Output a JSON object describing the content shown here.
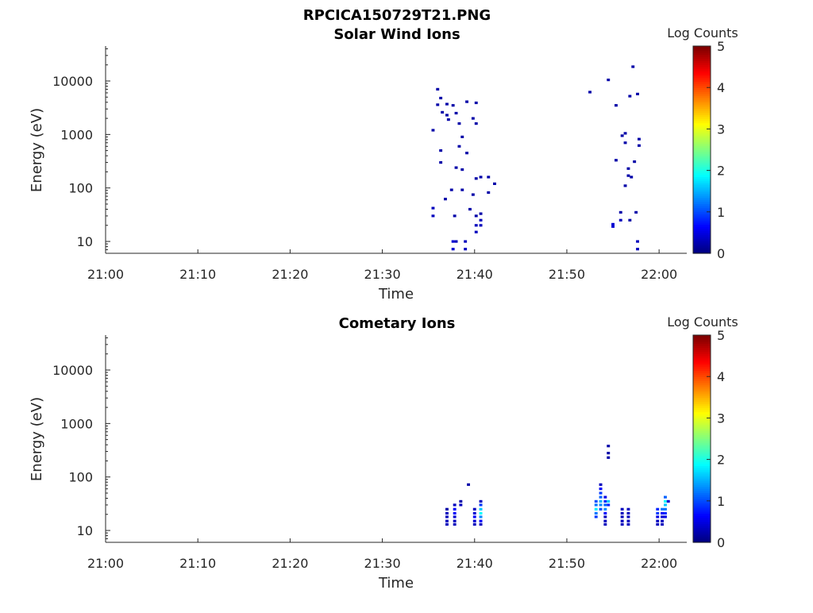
{
  "figure_title": "RPCICA150729T21.PNG",
  "colors": {
    "colormap": "jet",
    "axis": "#262626",
    "background": "#ffffff"
  },
  "chart_data": [
    {
      "type": "heatmap",
      "title": "Solar Wind Ions",
      "xlabel": "Time",
      "ylabel": "Energy (eV)",
      "yscale": "log",
      "xlim": [
        "21:00",
        "22:03"
      ],
      "ylim": [
        6,
        45000
      ],
      "x_ticks": [
        "21:00",
        "21:10",
        "21:20",
        "21:30",
        "21:40",
        "21:50",
        "22:00"
      ],
      "y_ticks": [
        "10",
        "100",
        "1000",
        "10000"
      ],
      "colorbar": {
        "label": "Log Counts",
        "ticks": [
          "0",
          "1",
          "2",
          "3",
          "4",
          "5"
        ],
        "range": [
          0,
          5
        ]
      },
      "cells": [
        {
          "t": "21:36:00",
          "e": 7000,
          "v": 0.2
        },
        {
          "t": "21:36:20",
          "e": 4800,
          "v": 0.2
        },
        {
          "t": "21:36:00",
          "e": 3600,
          "v": 0.2
        },
        {
          "t": "21:37:00",
          "e": 3700,
          "v": 0.2
        },
        {
          "t": "21:37:40",
          "e": 3500,
          "v": 0.2
        },
        {
          "t": "21:36:30",
          "e": 2600,
          "v": 0.2
        },
        {
          "t": "21:37:00",
          "e": 2300,
          "v": 0.2
        },
        {
          "t": "21:38:00",
          "e": 2500,
          "v": 0.2
        },
        {
          "t": "21:39:10",
          "e": 4100,
          "v": 0.2
        },
        {
          "t": "21:40:10",
          "e": 3900,
          "v": 0.2
        },
        {
          "t": "21:37:10",
          "e": 1900,
          "v": 0.2
        },
        {
          "t": "21:38:20",
          "e": 1600,
          "v": 0.2
        },
        {
          "t": "21:40:10",
          "e": 1600,
          "v": 0.2
        },
        {
          "t": "21:35:30",
          "e": 1200,
          "v": 0.2
        },
        {
          "t": "21:39:50",
          "e": 2000,
          "v": 0.2
        },
        {
          "t": "21:38:40",
          "e": 900,
          "v": 0.2
        },
        {
          "t": "21:38:20",
          "e": 600,
          "v": 0.2
        },
        {
          "t": "21:39:10",
          "e": 450,
          "v": 0.2
        },
        {
          "t": "21:36:20",
          "e": 500,
          "v": 0.2
        },
        {
          "t": "21:36:20",
          "e": 300,
          "v": 0.2
        },
        {
          "t": "21:38:00",
          "e": 240,
          "v": 0.2
        },
        {
          "t": "21:38:40",
          "e": 220,
          "v": 0.2
        },
        {
          "t": "21:40:40",
          "e": 160,
          "v": 0.2
        },
        {
          "t": "21:41:30",
          "e": 160,
          "v": 0.2
        },
        {
          "t": "21:40:10",
          "e": 150,
          "v": 0.2
        },
        {
          "t": "21:42:10",
          "e": 120,
          "v": 0.2
        },
        {
          "t": "21:37:30",
          "e": 92,
          "v": 0.2
        },
        {
          "t": "21:38:40",
          "e": 92,
          "v": 0.2
        },
        {
          "t": "21:41:30",
          "e": 82,
          "v": 0.2
        },
        {
          "t": "21:39:50",
          "e": 75,
          "v": 0.2
        },
        {
          "t": "21:36:50",
          "e": 62,
          "v": 0.2
        },
        {
          "t": "21:35:30",
          "e": 42,
          "v": 0.3
        },
        {
          "t": "21:35:30",
          "e": 30,
          "v": 0.3
        },
        {
          "t": "21:37:50",
          "e": 30,
          "v": 0.2
        },
        {
          "t": "21:40:10",
          "e": 30,
          "v": 0.2
        },
        {
          "t": "21:39:30",
          "e": 40,
          "v": 0.2
        },
        {
          "t": "21:40:40",
          "e": 33,
          "v": 0.2
        },
        {
          "t": "21:40:40",
          "e": 25,
          "v": 0.3
        },
        {
          "t": "21:40:40",
          "e": 20,
          "v": 0.3
        },
        {
          "t": "21:40:10",
          "e": 20,
          "v": 0.3
        },
        {
          "t": "21:40:10",
          "e": 15,
          "v": 0.3
        },
        {
          "t": "21:37:40",
          "e": 10,
          "v": 0.4
        },
        {
          "t": "21:37:40",
          "e": 7.2,
          "v": 0.4
        },
        {
          "t": "21:38:00",
          "e": 10,
          "v": 0.3
        },
        {
          "t": "21:39:00",
          "e": 10,
          "v": 0.3
        },
        {
          "t": "21:39:00",
          "e": 7.2,
          "v": 0.3
        },
        {
          "t": "21:52:30",
          "e": 6200,
          "v": 0.2
        },
        {
          "t": "21:54:30",
          "e": 10500,
          "v": 0.2
        },
        {
          "t": "21:57:10",
          "e": 18500,
          "v": 0.2
        },
        {
          "t": "21:56:50",
          "e": 5200,
          "v": 0.2
        },
        {
          "t": "21:57:40",
          "e": 5700,
          "v": 0.2
        },
        {
          "t": "21:55:20",
          "e": 3500,
          "v": 0.2
        },
        {
          "t": "21:56:20",
          "e": 1050,
          "v": 0.2
        },
        {
          "t": "21:56:00",
          "e": 950,
          "v": 0.2
        },
        {
          "t": "21:57:50",
          "e": 820,
          "v": 0.2
        },
        {
          "t": "21:56:20",
          "e": 700,
          "v": 0.2
        },
        {
          "t": "21:57:50",
          "e": 620,
          "v": 0.2
        },
        {
          "t": "21:55:20",
          "e": 330,
          "v": 0.2
        },
        {
          "t": "21:57:20",
          "e": 310,
          "v": 0.2
        },
        {
          "t": "21:56:40",
          "e": 230,
          "v": 0.2
        },
        {
          "t": "21:56:40",
          "e": 170,
          "v": 0.2
        },
        {
          "t": "21:57:00",
          "e": 160,
          "v": 0.2
        },
        {
          "t": "21:56:20",
          "e": 110,
          "v": 0.2
        },
        {
          "t": "21:55:50",
          "e": 35,
          "v": 0.2
        },
        {
          "t": "21:57:30",
          "e": 35,
          "v": 0.2
        },
        {
          "t": "21:55:50",
          "e": 25,
          "v": 0.3
        },
        {
          "t": "21:56:50",
          "e": 25,
          "v": 0.2
        },
        {
          "t": "21:55:00",
          "e": 21,
          "v": 0.4
        },
        {
          "t": "21:55:00",
          "e": 19,
          "v": 0.4
        },
        {
          "t": "21:57:40",
          "e": 10,
          "v": 0.3
        },
        {
          "t": "21:57:40",
          "e": 7.2,
          "v": 0.3
        }
      ]
    },
    {
      "type": "heatmap",
      "title": "Cometary Ions",
      "xlabel": "Time",
      "ylabel": "Energy (eV)",
      "yscale": "log",
      "xlim": [
        "21:00",
        "22:03"
      ],
      "ylim": [
        6,
        45000
      ],
      "x_ticks": [
        "21:00",
        "21:10",
        "21:20",
        "21:30",
        "21:40",
        "21:50",
        "22:00"
      ],
      "y_ticks": [
        "10",
        "100",
        "1000",
        "10000"
      ],
      "colorbar": {
        "label": "Log Counts",
        "ticks": [
          "0",
          "1",
          "2",
          "3",
          "4",
          "5"
        ],
        "range": [
          0,
          5
        ]
      },
      "cells": [
        {
          "t": "21:37:00",
          "e": 25,
          "v": 0.2
        },
        {
          "t": "21:37:00",
          "e": 21,
          "v": 0.3
        },
        {
          "t": "21:37:00",
          "e": 18,
          "v": 0.3
        },
        {
          "t": "21:37:00",
          "e": 15,
          "v": 0.3
        },
        {
          "t": "21:37:00",
          "e": 13,
          "v": 0.3
        },
        {
          "t": "21:37:50",
          "e": 30,
          "v": 0.3
        },
        {
          "t": "21:37:50",
          "e": 25,
          "v": 0.6
        },
        {
          "t": "21:37:50",
          "e": 21,
          "v": 0.6
        },
        {
          "t": "21:37:50",
          "e": 18,
          "v": 0.4
        },
        {
          "t": "21:37:50",
          "e": 15,
          "v": 0.3
        },
        {
          "t": "21:37:50",
          "e": 13,
          "v": 0.3
        },
        {
          "t": "21:38:30",
          "e": 35,
          "v": 0.2
        },
        {
          "t": "21:38:30",
          "e": 30,
          "v": 0.3
        },
        {
          "t": "21:39:20",
          "e": 72,
          "v": 0.2
        },
        {
          "t": "21:40:00",
          "e": 25,
          "v": 0.3
        },
        {
          "t": "21:40:00",
          "e": 21,
          "v": 0.4
        },
        {
          "t": "21:40:00",
          "e": 18,
          "v": 0.6
        },
        {
          "t": "21:40:00",
          "e": 15,
          "v": 0.4
        },
        {
          "t": "21:40:00",
          "e": 13,
          "v": 0.3
        },
        {
          "t": "21:40:40",
          "e": 35,
          "v": 0.3
        },
        {
          "t": "21:40:40",
          "e": 30,
          "v": 0.9
        },
        {
          "t": "21:40:40",
          "e": 25,
          "v": 1.6
        },
        {
          "t": "21:40:40",
          "e": 21,
          "v": 1.9
        },
        {
          "t": "21:40:40",
          "e": 18,
          "v": 1.3
        },
        {
          "t": "21:40:40",
          "e": 15,
          "v": 0.6
        },
        {
          "t": "21:40:40",
          "e": 13,
          "v": 0.3
        },
        {
          "t": "21:53:10",
          "e": 35,
          "v": 1.0
        },
        {
          "t": "21:53:10",
          "e": 30,
          "v": 1.2
        },
        {
          "t": "21:53:10",
          "e": 25,
          "v": 1.8
        },
        {
          "t": "21:53:10",
          "e": 21,
          "v": 1.2
        },
        {
          "t": "21:53:10",
          "e": 18,
          "v": 0.9
        },
        {
          "t": "21:53:40",
          "e": 72,
          "v": 0.3
        },
        {
          "t": "21:53:40",
          "e": 60,
          "v": 0.6
        },
        {
          "t": "21:53:40",
          "e": 50,
          "v": 0.9
        },
        {
          "t": "21:53:40",
          "e": 42,
          "v": 1.1
        },
        {
          "t": "21:53:40",
          "e": 35,
          "v": 1.5
        },
        {
          "t": "21:53:40",
          "e": 30,
          "v": 1.3
        },
        {
          "t": "21:53:40",
          "e": 25,
          "v": 1.0
        },
        {
          "t": "21:54:10",
          "e": 42,
          "v": 0.5
        },
        {
          "t": "21:54:10",
          "e": 35,
          "v": 0.8
        },
        {
          "t": "21:54:10",
          "e": 30,
          "v": 1.1
        },
        {
          "t": "21:54:10",
          "e": 25,
          "v": 1.3
        },
        {
          "t": "21:54:10",
          "e": 21,
          "v": 0.6
        },
        {
          "t": "21:54:10",
          "e": 18,
          "v": 0.3
        },
        {
          "t": "21:54:10",
          "e": 15,
          "v": 0.3
        },
        {
          "t": "21:54:10",
          "e": 13,
          "v": 0.3
        },
        {
          "t": "21:54:30",
          "e": 380,
          "v": 0.2
        },
        {
          "t": "21:54:30",
          "e": 280,
          "v": 0.2
        },
        {
          "t": "21:54:30",
          "e": 230,
          "v": 0.2
        },
        {
          "t": "21:54:30",
          "e": 35,
          "v": 1.6
        },
        {
          "t": "21:54:30",
          "e": 30,
          "v": 0.8
        },
        {
          "t": "21:56:00",
          "e": 25,
          "v": 0.3
        },
        {
          "t": "21:56:00",
          "e": 21,
          "v": 0.3
        },
        {
          "t": "21:56:00",
          "e": 18,
          "v": 0.3
        },
        {
          "t": "21:56:00",
          "e": 15,
          "v": 0.3
        },
        {
          "t": "21:56:00",
          "e": 13,
          "v": 0.3
        },
        {
          "t": "21:56:40",
          "e": 25,
          "v": 0.3
        },
        {
          "t": "21:56:40",
          "e": 21,
          "v": 0.3
        },
        {
          "t": "21:56:40",
          "e": 18,
          "v": 0.3
        },
        {
          "t": "21:56:40",
          "e": 15,
          "v": 0.3
        },
        {
          "t": "21:56:40",
          "e": 13,
          "v": 0.3
        },
        {
          "t": "21:59:50",
          "e": 25,
          "v": 0.8
        },
        {
          "t": "21:59:50",
          "e": 21,
          "v": 0.9
        },
        {
          "t": "21:59:50",
          "e": 18,
          "v": 0.5
        },
        {
          "t": "21:59:50",
          "e": 15,
          "v": 0.3
        },
        {
          "t": "21:59:50",
          "e": 13,
          "v": 0.3
        },
        {
          "t": "22:00:20",
          "e": 25,
          "v": 1.2
        },
        {
          "t": "22:00:20",
          "e": 21,
          "v": 0.6
        },
        {
          "t": "22:00:20",
          "e": 18,
          "v": 0.4
        },
        {
          "t": "22:00:20",
          "e": 15,
          "v": 0.3
        },
        {
          "t": "22:00:20",
          "e": 13,
          "v": 0.3
        },
        {
          "t": "22:00:40",
          "e": 42,
          "v": 1.1
        },
        {
          "t": "22:00:40",
          "e": 35,
          "v": 1.9
        },
        {
          "t": "22:00:40",
          "e": 30,
          "v": 1.6
        },
        {
          "t": "22:00:40",
          "e": 25,
          "v": 1.2
        },
        {
          "t": "22:00:40",
          "e": 21,
          "v": 0.8
        },
        {
          "t": "22:00:40",
          "e": 18,
          "v": 0.5
        },
        {
          "t": "22:01:00",
          "e": 35,
          "v": 0.4
        }
      ]
    }
  ]
}
